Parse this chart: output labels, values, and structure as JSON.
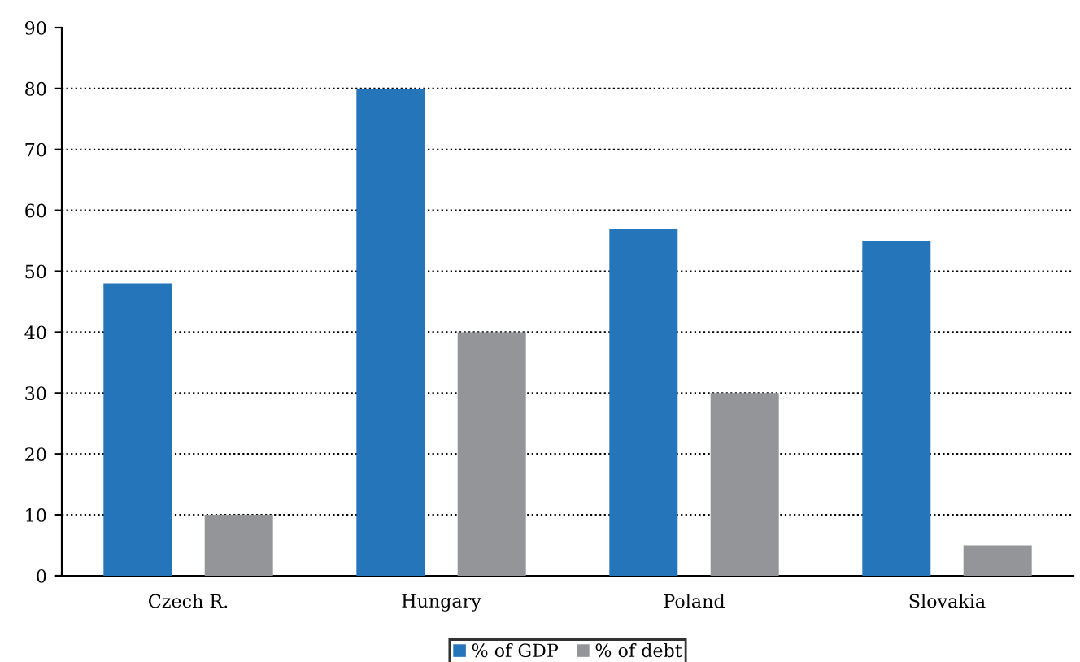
{
  "chart_data": {
    "type": "bar",
    "categories": [
      "Czech R.",
      "Hungary",
      "Poland",
      "Slovakia"
    ],
    "series": [
      {
        "name": "% of GDP",
        "color": "#2575bb",
        "values": [
          48,
          80,
          57,
          55
        ]
      },
      {
        "name": "% of debt",
        "color": "#939598",
        "values": [
          10,
          40,
          30,
          5
        ]
      }
    ],
    "ylim": [
      0,
      90
    ],
    "yticks": [
      0,
      10,
      20,
      30,
      40,
      50,
      60,
      70,
      80,
      90
    ],
    "grid": "y",
    "legend": "bottom"
  }
}
